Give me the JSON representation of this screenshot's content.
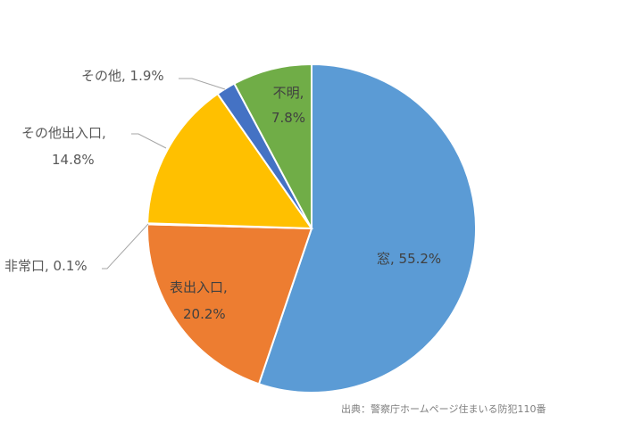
{
  "chart_data": {
    "type": "pie",
    "title": "",
    "categories": [
      "窓",
      "表出入口",
      "非常口",
      "その他出入口",
      "その他",
      "不明"
    ],
    "values": [
      55.2,
      20.2,
      0.1,
      14.8,
      1.9,
      7.8
    ],
    "colors": [
      "#5b9bd5",
      "#ed7d31",
      "#a5a5a5",
      "#ffc000",
      "#4472c4",
      "#70ad47"
    ],
    "labels": [
      "窓, 55.2%",
      "表出入口, 20.2%",
      "非常口, 0.1%",
      "その他出入口, 14.8%",
      "その他, 1.9%",
      "不明, 7.8%"
    ],
    "start_angle": "top (12 o'clock), clockwise",
    "legend": "none (data labels)"
  },
  "labels": {
    "window": "窓, 55.2%",
    "front_line1": "表出入口,",
    "front_line2": "20.2%",
    "emergency": "非常口, 0.1%",
    "other_entrance_line1": "その他出入口,",
    "other_entrance_line2": "14.8%",
    "other": "その他, 1.9%",
    "unknown_line1": "不明,",
    "unknown_line2": "7.8%"
  },
  "source": "出典：警察庁ホームページ住まいる防犯110番"
}
